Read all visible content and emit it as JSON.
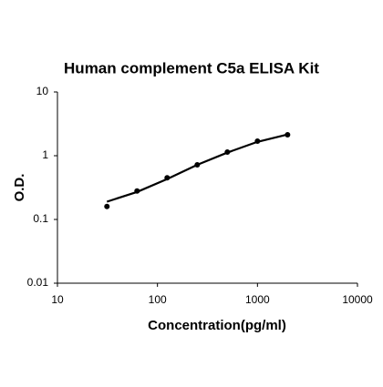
{
  "chart_data": {
    "type": "scatter",
    "title": "Human complement C5a ELISA Kit",
    "x_label": "Concentration(pg/ml)",
    "y_label": "O.D.",
    "x": [
      31.25,
      62.5,
      125,
      250,
      500,
      1000,
      2000
    ],
    "series": [
      {
        "color": "#000000",
        "marker": true,
        "values": [
          0.16,
          0.28,
          0.45,
          0.72,
          1.14,
          1.69,
          2.13
        ]
      },
      {
        "color": "#000000",
        "line": true,
        "values": [
          0.19,
          0.27,
          0.43,
          0.72,
          1.12,
          1.65,
          2.15
        ]
      }
    ],
    "xlim": [
      10,
      10000
    ],
    "xticks": [
      10,
      100,
      1000,
      10000
    ],
    "xlog": true,
    "ylim": [
      0.01,
      10
    ],
    "yticks": [
      0.01,
      0.1,
      1,
      10
    ],
    "ylog": true
  }
}
